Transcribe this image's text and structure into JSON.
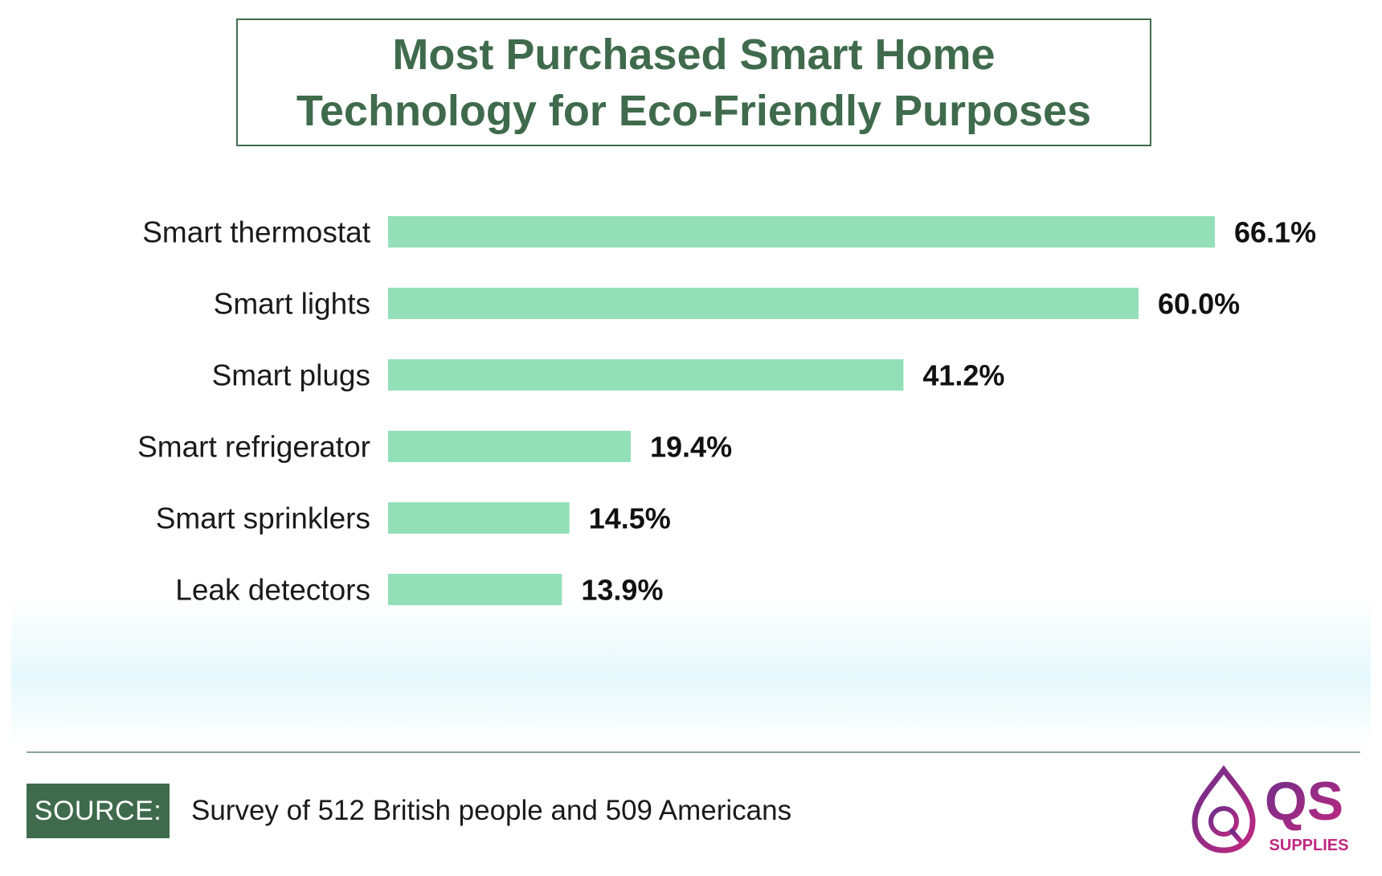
{
  "title": "Most Purchased Smart Home\nTechnology for Eco-Friendly Purposes",
  "source": {
    "label": "SOURCE:",
    "text": "Survey of 512 British people and 509 Americans"
  },
  "logo": {
    "mark": "QS",
    "sub": "SUPPLIES",
    "icon": "droplet-q-logo-icon"
  },
  "colors": {
    "bar": "#93dfb8",
    "title": "#3f6b4c",
    "badge": "#3f6b4c",
    "logo_purple": "#6b2f8a",
    "logo_pink": "#c0287f"
  },
  "chart_data": {
    "type": "bar",
    "orientation": "horizontal",
    "title": "Most Purchased Smart Home Technology for Eco-Friendly Purposes",
    "categories": [
      "Smart thermostat",
      "Smart lights",
      "Smart plugs",
      "Smart refrigerator",
      "Smart sprinklers",
      "Leak detectors"
    ],
    "values": [
      66.1,
      60.0,
      41.2,
      19.4,
      14.5,
      13.9
    ],
    "value_labels": [
      "66.1%",
      "60.0%",
      "41.2%",
      "19.4%",
      "14.5%",
      "13.9%"
    ],
    "unit": "%",
    "xlim": [
      0,
      66.1
    ],
    "grid": false,
    "legend": "none"
  }
}
